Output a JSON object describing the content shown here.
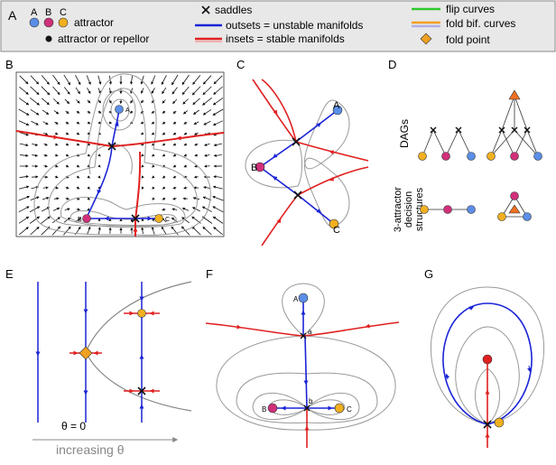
{
  "legend": {
    "panel_letter": "A",
    "abc_letters": [
      "A",
      "B",
      "C"
    ],
    "attractor_label": "attractor",
    "attractor_repellor_label": "attractor or repellor",
    "saddles_label": "saddles",
    "outsets_label": "outsets = unstable manifolds",
    "insets_label": "insets = stable manifolds",
    "flip_label": "flip curves",
    "fold_bif_label": "fold bif. curves",
    "fold_point_label": "fold point"
  },
  "panels": {
    "B": {
      "letter": "B",
      "nodes": [
        "A",
        "B",
        "C"
      ]
    },
    "C": {
      "letter": "C",
      "nodes": [
        "A",
        "B",
        "C"
      ]
    },
    "D": {
      "letter": "D",
      "dags_label": "DAGs",
      "decision_label": [
        "3-attractor",
        "decision",
        "structures"
      ]
    },
    "E": {
      "letter": "E",
      "theta_label": "θ = 0",
      "increasing_label": "increasing θ"
    },
    "F": {
      "letter": "F",
      "nodes": [
        "A",
        "B",
        "C"
      ],
      "saddle_labels": [
        "a",
        "b"
      ]
    },
    "G": {
      "letter": "G"
    }
  },
  "colors": {
    "attractor_A": "#5b8ee6",
    "attractor_B": "#d0307a",
    "attractor_C": "#f0b020",
    "outset": "#1a24d6",
    "inset": "#e02020",
    "fold_point": "#f0a020",
    "flip": "#2ec82e",
    "fold_bif_1": "#f0a020",
    "fold_bif_2": "#b0b0e8"
  }
}
